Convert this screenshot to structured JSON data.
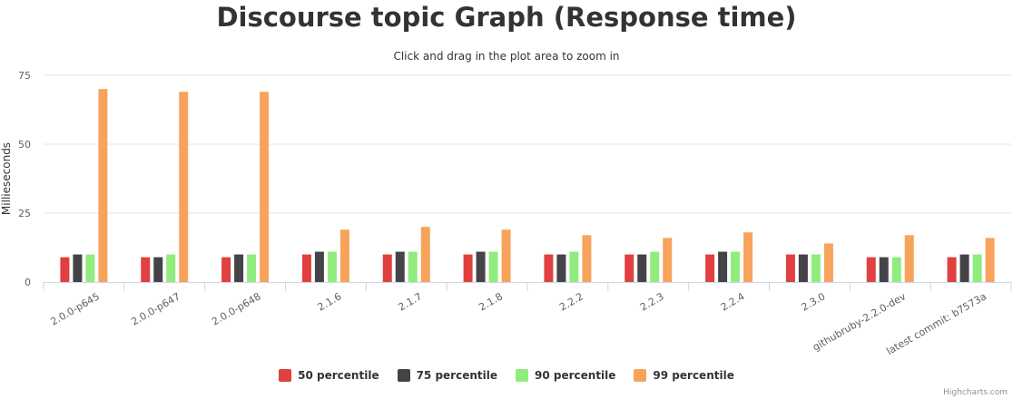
{
  "chart_data": {
    "type": "bar",
    "title": "Discourse topic Graph (Response time)",
    "subtitle": "Click and drag in the plot area to zoom in",
    "ylabel": "Millieseconds",
    "xlabel": "",
    "ylim": [
      0,
      75
    ],
    "yticks": [
      0,
      25,
      50,
      75
    ],
    "grid": true,
    "legend_position": "bottom-center",
    "categories": [
      "2.0.0-p645",
      "2.0.0-p647",
      "2.0.0-p648",
      "2.1.6",
      "2.1.7",
      "2.1.8",
      "2.2.2",
      "2.2.3",
      "2.2.4",
      "2.3.0",
      "githubruby-2.2.0-dev",
      "latest commit: b7573a"
    ],
    "series": [
      {
        "name": "50 percentile",
        "color": "#e0403f",
        "values": [
          9,
          9,
          9,
          10,
          10,
          10,
          10,
          10,
          10,
          10,
          9,
          9
        ]
      },
      {
        "name": "75 percentile",
        "color": "#434348",
        "values": [
          10,
          9,
          10,
          11,
          11,
          11,
          10,
          10,
          11,
          10,
          9,
          10
        ]
      },
      {
        "name": "90 percentile",
        "color": "#90ed7d",
        "values": [
          10,
          10,
          10,
          11,
          11,
          11,
          11,
          11,
          11,
          10,
          9,
          10
        ]
      },
      {
        "name": "99 percentile",
        "color": "#f7a35c",
        "values": [
          70,
          69,
          69,
          19,
          20,
          19,
          17,
          16,
          18,
          14,
          17,
          16
        ]
      }
    ]
  },
  "credits": "Highcharts.com"
}
